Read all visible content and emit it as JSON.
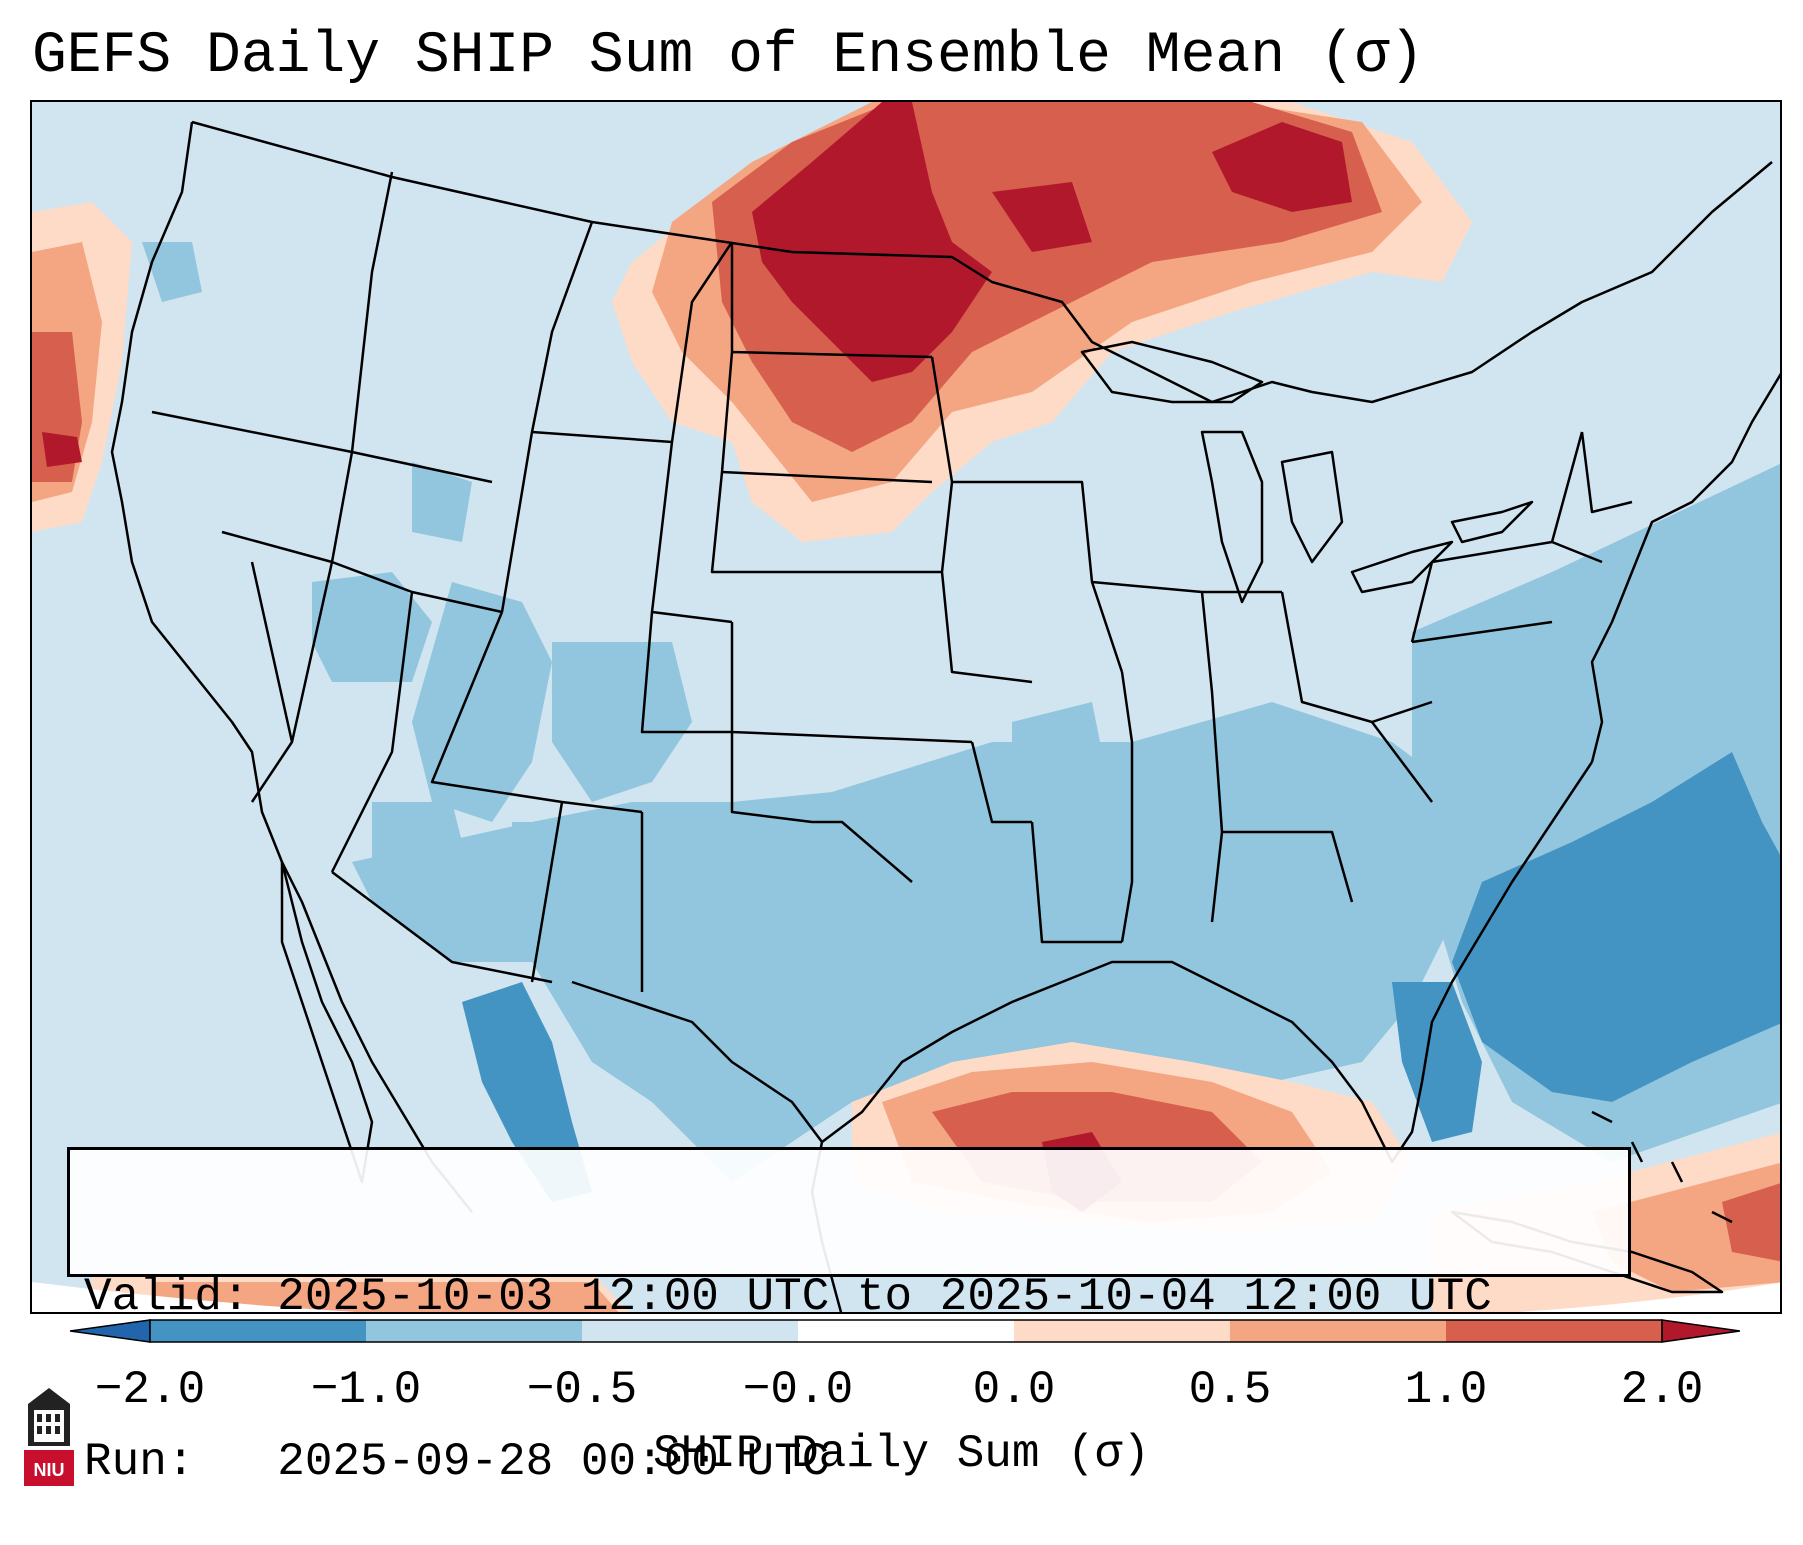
{
  "title": "GEFS Daily SHIP Sum of Ensemble Mean (σ)",
  "info": {
    "valid_line": "Valid: 2025-10-03 12:00 UTC to 2025-10-04 12:00 UTC",
    "run_line": "Run:   2025-09-28 00:00 UTC"
  },
  "colorbar": {
    "label": "SHIP Daily Sum (σ)",
    "ticks": [
      "−2.0",
      "−1.0",
      "−0.5",
      "−0.0",
      "0.0",
      "0.5",
      "1.0",
      "2.0"
    ],
    "colors": [
      "#2166ac",
      "#4393c3",
      "#92c5de",
      "#d1e5f0",
      "#ffffff",
      "#fddbc7",
      "#f4a582",
      "#d6604d",
      "#b2182b"
    ],
    "extend": "both"
  },
  "map": {
    "projection": "Lambert Conformal (CONUS)",
    "ocean_color": "#d1e5f0",
    "anomaly_regions": [
      {
        "area": "Northern Plains / Dakotas / Manitoba",
        "value_range": "1.0 to 2.0"
      },
      {
        "area": "Ontario / Great Lakes north",
        "value_range": "0.5 to 2.0"
      },
      {
        "area": "Pacific Northwest offshore",
        "value_range": "0.5 to 2.0"
      },
      {
        "area": "Gulf of Mexico",
        "value_range": "0.5 to 2.0"
      },
      {
        "area": "Caribbean / Cuba",
        "value_range": "0.0 to 2.0"
      },
      {
        "area": "Southeast US / Texas",
        "value_range": "-1.0 to -0.5"
      },
      {
        "area": "Western Atlantic",
        "value_range": "-2.0 to -1.0"
      },
      {
        "area": "Mexico Sierra Madre",
        "value_range": "-2.0 to -1.0"
      }
    ]
  },
  "logo": {
    "text": "NIU"
  }
}
